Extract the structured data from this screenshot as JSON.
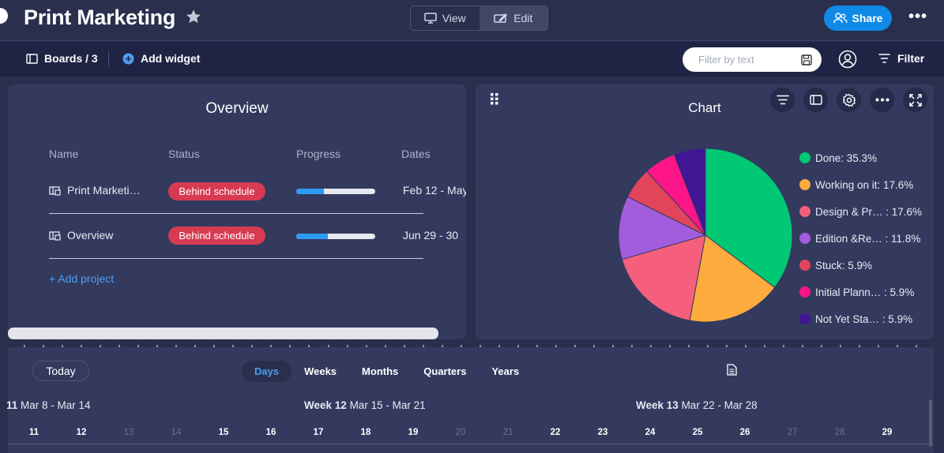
{
  "header": {
    "title": "Print Marketing",
    "view_label": "View",
    "edit_label": "Edit",
    "share_label": "Share"
  },
  "toolbar": {
    "boards_label": "Boards / 3",
    "add_widget_label": "Add widget",
    "filter_placeholder": "Filter by text",
    "filter_label": "Filter"
  },
  "overview": {
    "title": "Overview",
    "columns": [
      "Name",
      "Status",
      "Progress",
      "Dates"
    ],
    "rows": [
      {
        "name": "Print Marketi…",
        "status": "Behind schedule",
        "progress": 0.35,
        "dates": "Feb 12 - May"
      },
      {
        "name": "Overview",
        "status": "Behind schedule",
        "progress": 0.4,
        "dates": "Jun 29 - 30"
      }
    ],
    "add_project_label": "+ Add project"
  },
  "chart_panel": {
    "title": "Chart",
    "tools": [
      "filter-icon",
      "sidebar-icon",
      "settings-icon",
      "more-icon",
      "fullscreen-icon"
    ]
  },
  "chart_data": {
    "type": "pie",
    "title": "Chart",
    "legend_position": "right",
    "slices": [
      {
        "name": "Done",
        "label": "Done: 35.3%",
        "value": 35.3,
        "color": "#00c875"
      },
      {
        "name": "Working on it",
        "label": "Working on it: 17.6%",
        "value": 17.6,
        "color": "#fdab3d"
      },
      {
        "name": "Design & Pr…",
        "label": "Design & Pr… : 17.6%",
        "value": 17.6,
        "color": "#f65f7c"
      },
      {
        "name": "Edition &Re…",
        "label": "Edition &Re… : 11.8%",
        "value": 11.8,
        "color": "#a25ddc"
      },
      {
        "name": "Stuck",
        "label": "Stuck: 5.9%",
        "value": 5.9,
        "color": "#e2445c"
      },
      {
        "name": "Initial Plann…",
        "label": "Initial Plann… : 5.9%",
        "value": 5.9,
        "color": "#ff158a"
      },
      {
        "name": "Not Yet Sta…",
        "label": "Not Yet Sta… : 5.9%",
        "value": 5.9,
        "color": "#401694"
      }
    ]
  },
  "timeline": {
    "today_label": "Today",
    "scales": [
      "Days",
      "Weeks",
      "Months",
      "Quarters",
      "Years"
    ],
    "active_scale": "Days",
    "weeks": [
      {
        "bold": "11",
        "range": "Mar 8 - Mar 14"
      },
      {
        "bold": "Week 12",
        "range": "Mar 15 - Mar 21"
      },
      {
        "bold": "Week 13",
        "range": "Mar 22 - Mar 28"
      }
    ],
    "days": [
      {
        "n": "11",
        "weekend": false
      },
      {
        "n": "12",
        "weekend": false
      },
      {
        "n": "13",
        "weekend": true
      },
      {
        "n": "14",
        "weekend": true
      },
      {
        "n": "15",
        "weekend": false
      },
      {
        "n": "16",
        "weekend": false
      },
      {
        "n": "17",
        "weekend": false
      },
      {
        "n": "18",
        "weekend": false
      },
      {
        "n": "19",
        "weekend": false
      },
      {
        "n": "20",
        "weekend": true
      },
      {
        "n": "21",
        "weekend": true
      },
      {
        "n": "22",
        "weekend": false
      },
      {
        "n": "23",
        "weekend": false
      },
      {
        "n": "24",
        "weekend": false
      },
      {
        "n": "25",
        "weekend": false
      },
      {
        "n": "26",
        "weekend": false
      },
      {
        "n": "27",
        "weekend": true
      },
      {
        "n": "28",
        "weekend": true
      },
      {
        "n": "29",
        "weekend": false
      }
    ]
  }
}
